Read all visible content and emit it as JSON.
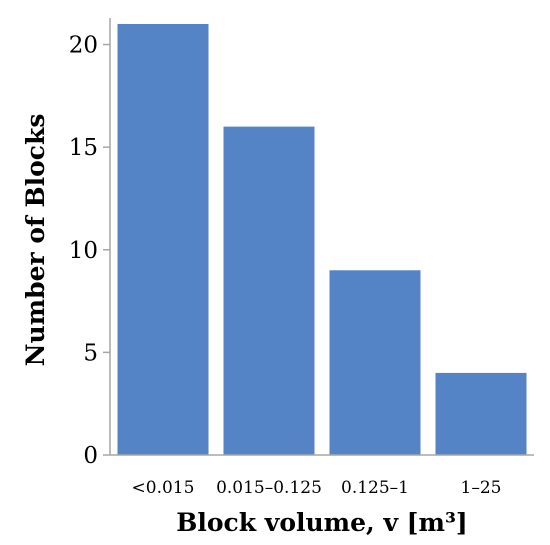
{
  "chart_data": {
    "type": "bar",
    "categories": [
      "<0.015",
      "0.015–0.125",
      "0.125–1",
      "1–25"
    ],
    "values": [
      21,
      16,
      9,
      4
    ],
    "xlabel": "Block volume, v [m³]",
    "ylabel": "Number of Blocks",
    "ylim": [
      0,
      21
    ],
    "yticks": [
      0,
      5,
      10,
      15,
      20
    ],
    "grid": false,
    "bar_color": "#5584c6",
    "axis_color": "#a6a6a6"
  }
}
